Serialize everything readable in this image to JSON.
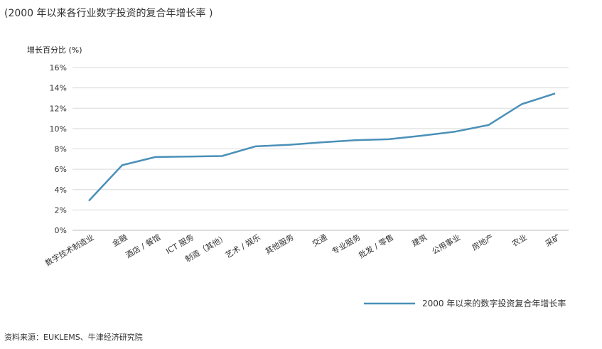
{
  "header": {
    "title": "(2000 年以来各行业数字投资的复合年增长率 )",
    "source": "资料来源：EUKLEMS、牛津经济研究院"
  },
  "chart_data": {
    "type": "line",
    "ylabel": "增长百分比 (%)",
    "ylim": [
      0,
      16
    ],
    "yticks": [
      0,
      2,
      4,
      6,
      8,
      10,
      12,
      14,
      16
    ],
    "ytick_labels": [
      "0%",
      "2%",
      "4%",
      "6%",
      "8%",
      "10%",
      "12%",
      "14%",
      "16%"
    ],
    "grid": true,
    "legend_position": "bottom-right",
    "categories": [
      "数字技术制造业",
      "金融",
      "酒店 / 餐馆",
      "ICT 服务",
      "制造（其他）",
      "艺术 / 娱乐",
      "其他服务",
      "交通",
      "专业服务",
      "批发 / 零售",
      "建筑",
      "公用事业",
      "房地产",
      "农业",
      "采矿"
    ],
    "series": [
      {
        "name": "2000 年以来的数字投资复合年增长率",
        "color": "#4a90b8",
        "values": [
          2.9,
          6.4,
          7.2,
          7.25,
          7.3,
          8.25,
          8.4,
          8.65,
          8.85,
          8.95,
          9.3,
          9.7,
          10.35,
          12.4,
          13.45
        ]
      }
    ]
  }
}
